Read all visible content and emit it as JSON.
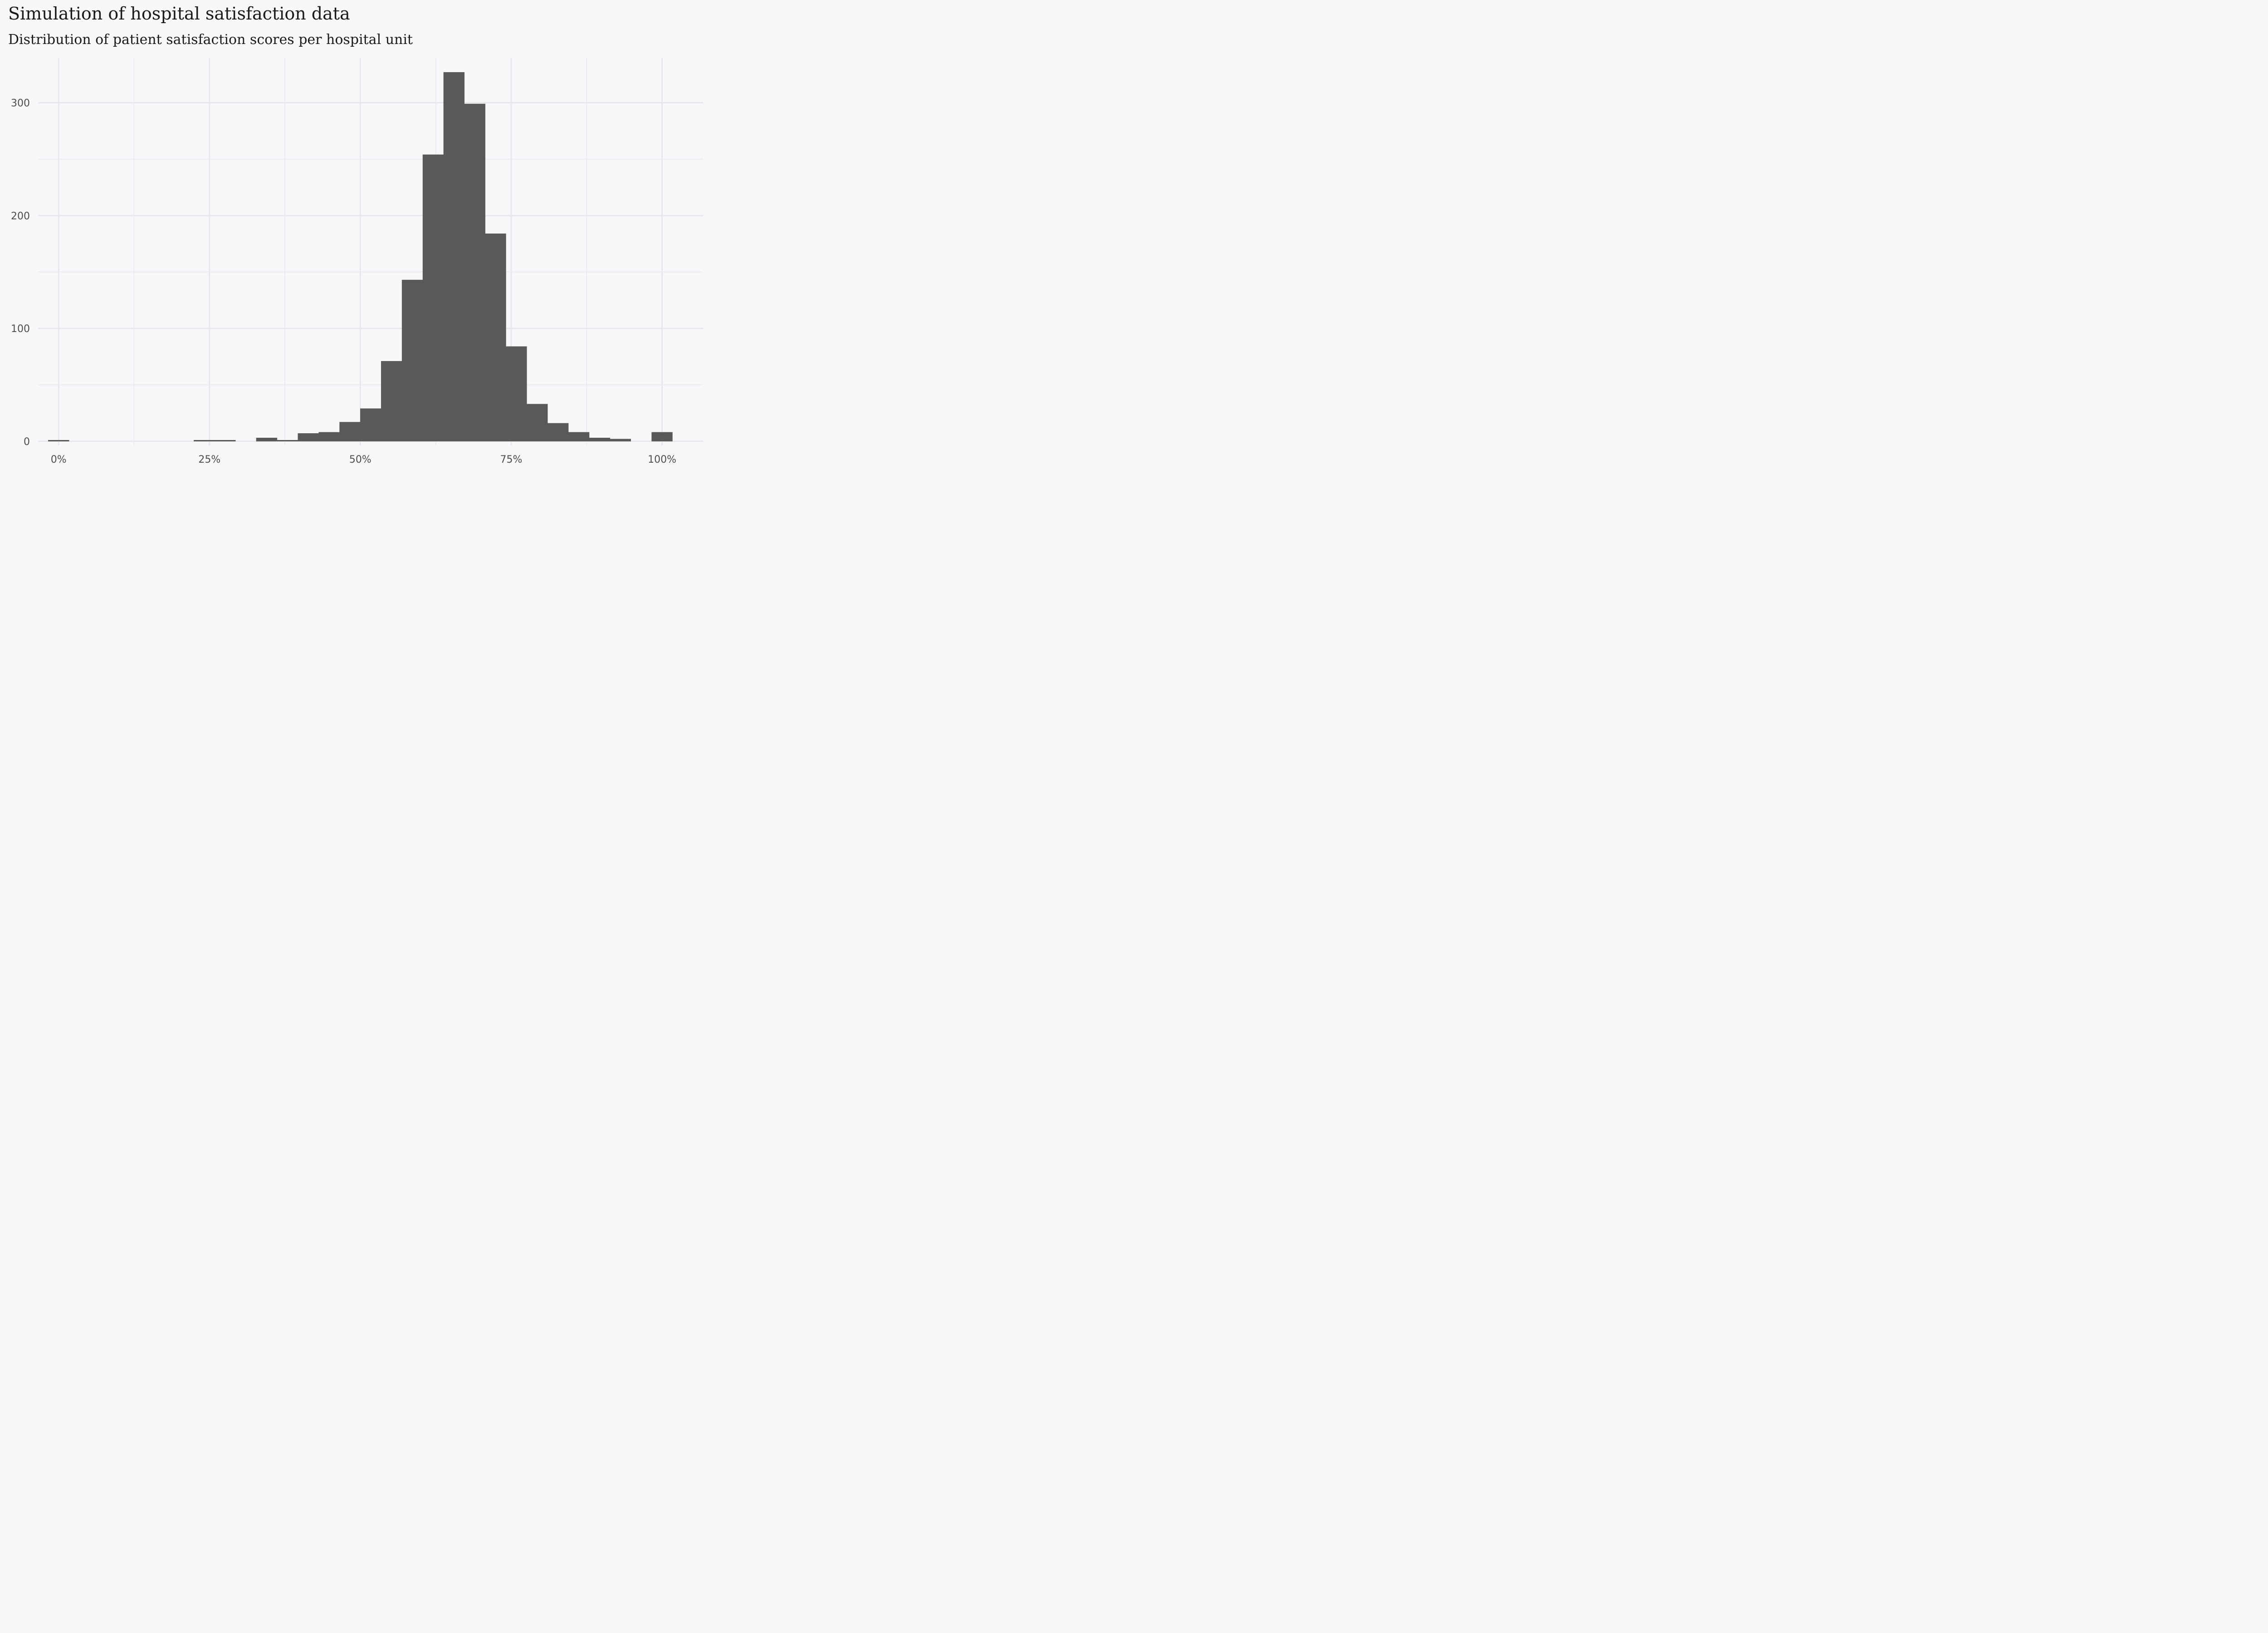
{
  "title": "Simulation of hospital satisfaction data",
  "subtitle": "Distribution of patient satisfaction scores per hospital unit",
  "colors": {
    "background": "#f8f8fa",
    "bar": "#595959",
    "grid": "#e8e8ec",
    "text": "#1a1a1a",
    "tick_text": "#4d4d4d"
  },
  "chart_data": {
    "type": "bar",
    "title": "Simulation of hospital satisfaction data",
    "subtitle": "Distribution of patient satisfaction scores per hospital unit",
    "xlabel": "",
    "ylabel": "",
    "grid": true,
    "x_range": [
      -0.034,
      1.068
    ],
    "ylim": [
      -3.7,
      339.6
    ],
    "bin_width": 0.03448,
    "x_ticks": [
      0,
      0.25,
      0.5,
      0.75,
      1.0
    ],
    "x_tick_labels": [
      "0%",
      "25%",
      "50%",
      "75%",
      "100%"
    ],
    "y_ticks": [
      0,
      100,
      200,
      300
    ],
    "y_tick_labels": [
      "0",
      "100",
      "200",
      "300"
    ],
    "bins": [
      {
        "x": 0.0,
        "count": 1
      },
      {
        "x": 0.2414,
        "count": 1
      },
      {
        "x": 0.2759,
        "count": 1
      },
      {
        "x": 0.3448,
        "count": 3
      },
      {
        "x": 0.3793,
        "count": 1
      },
      {
        "x": 0.4138,
        "count": 7
      },
      {
        "x": 0.4483,
        "count": 8
      },
      {
        "x": 0.4828,
        "count": 17
      },
      {
        "x": 0.5172,
        "count": 29
      },
      {
        "x": 0.5517,
        "count": 71
      },
      {
        "x": 0.5862,
        "count": 143
      },
      {
        "x": 0.6207,
        "count": 254
      },
      {
        "x": 0.6552,
        "count": 327
      },
      {
        "x": 0.6897,
        "count": 299
      },
      {
        "x": 0.7241,
        "count": 184
      },
      {
        "x": 0.7586,
        "count": 84
      },
      {
        "x": 0.7931,
        "count": 33
      },
      {
        "x": 0.8276,
        "count": 16
      },
      {
        "x": 0.8621,
        "count": 8
      },
      {
        "x": 0.8966,
        "count": 3
      },
      {
        "x": 0.931,
        "count": 2
      },
      {
        "x": 1.0,
        "count": 8
      }
    ]
  }
}
